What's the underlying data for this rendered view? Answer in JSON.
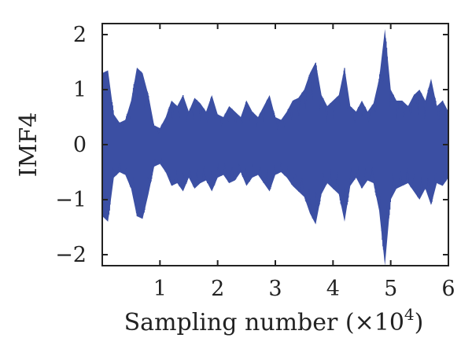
{
  "chart_data": {
    "type": "line",
    "xlabel": "Sampling number (×10",
    "xlabel_exponent": "4",
    "xlabel_suffix": ")",
    "ylabel": "IMF4",
    "xlim": [
      0,
      6
    ],
    "ylim": [
      -2.2,
      2.2
    ],
    "x_ticks": [
      1,
      2,
      3,
      4,
      5,
      6
    ],
    "x_tick_labels": [
      "1",
      "2",
      "3",
      "4",
      "5",
      "6"
    ],
    "y_ticks": [
      -2,
      -1,
      0,
      1,
      2
    ],
    "y_tick_labels": [
      "−2",
      "−1",
      "0",
      "1",
      "2"
    ],
    "grid": false,
    "line_color": "#3b4fa3",
    "series": [
      {
        "x": [
          0.0,
          0.1,
          0.2,
          0.3,
          0.4,
          0.5,
          0.6,
          0.7,
          0.8,
          0.9,
          1.0,
          1.1,
          1.2,
          1.3,
          1.4,
          1.5,
          1.6,
          1.7,
          1.8,
          1.9,
          2.0,
          2.1,
          2.2,
          2.3,
          2.4,
          2.5,
          2.6,
          2.7,
          2.8,
          2.9,
          3.0,
          3.1,
          3.2,
          3.3,
          3.4,
          3.5,
          3.6,
          3.7,
          3.8,
          3.9,
          4.0,
          4.1,
          4.2,
          4.3,
          4.4,
          4.5,
          4.6,
          4.7,
          4.8,
          4.9,
          5.0,
          5.1,
          5.2,
          5.3,
          5.4,
          5.5,
          5.6,
          5.7,
          5.8,
          5.9,
          6.0
        ],
        "upper": [
          1.3,
          1.35,
          0.55,
          0.4,
          0.45,
          0.8,
          1.4,
          1.3,
          0.9,
          0.35,
          0.3,
          0.5,
          0.8,
          0.7,
          0.9,
          0.6,
          0.85,
          0.75,
          0.6,
          0.9,
          0.55,
          0.5,
          0.7,
          0.6,
          0.5,
          0.8,
          0.6,
          0.5,
          0.7,
          0.9,
          0.5,
          0.45,
          0.6,
          0.8,
          0.85,
          1.0,
          1.3,
          1.5,
          0.9,
          0.7,
          0.8,
          0.9,
          1.4,
          0.7,
          0.6,
          0.8,
          0.6,
          0.75,
          1.2,
          2.1,
          1.0,
          0.8,
          0.8,
          0.7,
          0.9,
          1.0,
          0.8,
          1.2,
          0.7,
          0.8,
          0.6
        ],
        "lower": [
          -1.3,
          -1.4,
          -0.6,
          -0.5,
          -0.55,
          -0.8,
          -1.3,
          -1.35,
          -0.9,
          -0.4,
          -0.35,
          -0.5,
          -0.75,
          -0.7,
          -0.85,
          -0.6,
          -0.8,
          -0.7,
          -0.65,
          -0.85,
          -0.6,
          -0.55,
          -0.7,
          -0.65,
          -0.5,
          -0.75,
          -0.6,
          -0.55,
          -0.7,
          -0.85,
          -0.55,
          -0.5,
          -0.6,
          -0.75,
          -0.85,
          -0.95,
          -1.25,
          -1.45,
          -0.9,
          -0.7,
          -0.8,
          -0.9,
          -1.4,
          -0.75,
          -0.6,
          -0.8,
          -0.65,
          -0.7,
          -1.2,
          -2.2,
          -1.0,
          -0.8,
          -0.75,
          -0.7,
          -0.85,
          -1.0,
          -0.8,
          -1.1,
          -0.7,
          -0.75,
          -0.6
        ]
      }
    ]
  }
}
